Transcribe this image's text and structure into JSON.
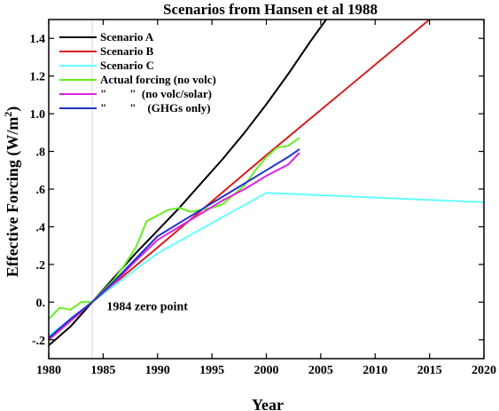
{
  "chart_data": {
    "type": "line",
    "title": "Scenarios from Hansen et al 1988",
    "xlabel": "Year",
    "ylabel": "Effective Forcing (W/m",
    "ylabel_sup": "2",
    "ylabel_close": ")",
    "xlim": [
      1980,
      2020
    ],
    "ylim": [
      -0.3,
      1.5
    ],
    "x_ticks": [
      {
        "value": 1980,
        "label": "1980"
      },
      {
        "value": 1985,
        "label": "1985"
      },
      {
        "value": 1990,
        "label": "1990"
      },
      {
        "value": 1995,
        "label": "1995"
      },
      {
        "value": 2000,
        "label": "2000"
      },
      {
        "value": 2005,
        "label": "2005"
      },
      {
        "value": 2010,
        "label": "2010"
      },
      {
        "value": 2015,
        "label": "2015"
      },
      {
        "value": 2020,
        "label": "2020"
      }
    ],
    "y_ticks": [
      {
        "value": -0.2,
        "label": "-.2"
      },
      {
        "value": 0.0,
        "label": "0."
      },
      {
        "value": 0.2,
        "label": ".2"
      },
      {
        "value": 0.4,
        "label": ".4"
      },
      {
        "value": 0.6,
        "label": ".6"
      },
      {
        "value": 0.8,
        "label": ".8"
      },
      {
        "value": 1.0,
        "label": "1.0"
      },
      {
        "value": 1.2,
        "label": "1.2"
      },
      {
        "value": 1.4,
        "label": "1.4"
      }
    ],
    "reference_line": {
      "x": 1984,
      "color": "#d8d8d8"
    },
    "annotations": [
      {
        "text": "1984 zero point",
        "x": 1985,
        "y": -0.02
      }
    ],
    "legend_placement": "top-left",
    "legend_labels": [
      "Scenario A",
      "Scenario B",
      "Scenario C",
      "Actual forcing (no volc)",
      "\"        \"  (no volc/solar)",
      "\"        \"    (GHGs only)"
    ],
    "series": [
      {
        "name": "Scenario A",
        "color": "#000000",
        "x": [
          1980,
          1982,
          1984,
          1986,
          1988,
          1990,
          1992,
          1994,
          1996,
          1998,
          2000,
          2002,
          2004,
          2005.5
        ],
        "y": [
          -0.23,
          -0.13,
          0.0,
          0.13,
          0.26,
          0.38,
          0.5,
          0.63,
          0.76,
          0.9,
          1.05,
          1.21,
          1.38,
          1.5
        ]
      },
      {
        "name": "Scenario B",
        "color": "#d42020",
        "x": [
          1980,
          1984,
          1990,
          2000,
          2010,
          2015
        ],
        "y": [
          -0.2,
          0.0,
          0.29,
          0.78,
          1.26,
          1.5
        ]
      },
      {
        "name": "Scenario C",
        "color": "#66ffff",
        "x": [
          1980,
          1984,
          1990,
          2000,
          2010,
          2020
        ],
        "y": [
          -0.18,
          0.0,
          0.26,
          0.58,
          0.555,
          0.53
        ]
      },
      {
        "name": "Actual forcing (no volc)",
        "color": "#66ee22",
        "x": [
          1980,
          1981,
          1982,
          1983,
          1984,
          1985,
          1986,
          1987,
          1988,
          1989,
          1990,
          1991,
          1992,
          1993,
          1994,
          1995,
          1996,
          1997,
          1998,
          1999,
          2000,
          2001,
          2002,
          2003
        ],
        "y": [
          -0.09,
          -0.03,
          -0.04,
          0.0,
          0.0,
          0.06,
          0.12,
          0.2,
          0.29,
          0.43,
          0.46,
          0.49,
          0.5,
          0.48,
          0.49,
          0.5,
          0.52,
          0.57,
          0.62,
          0.7,
          0.77,
          0.82,
          0.83,
          0.87
        ]
      },
      {
        "name": "no volc/solar",
        "color": "#dd22dd",
        "x": [
          1980,
          1982,
          1984,
          1986,
          1988,
          1990,
          1992,
          1994,
          1996,
          1998,
          2000,
          2002,
          2003
        ],
        "y": [
          -0.2,
          -0.1,
          0.0,
          0.1,
          0.22,
          0.33,
          0.4,
          0.47,
          0.54,
          0.6,
          0.67,
          0.73,
          0.79
        ]
      },
      {
        "name": "GHGs only",
        "color": "#2233cc",
        "x": [
          1980,
          1982,
          1984,
          1986,
          1988,
          1990,
          1992,
          1994,
          1996,
          1998,
          2000,
          2002,
          2003
        ],
        "y": [
          -0.19,
          -0.09,
          0.0,
          0.11,
          0.23,
          0.35,
          0.42,
          0.49,
          0.56,
          0.63,
          0.7,
          0.77,
          0.81
        ]
      }
    ]
  }
}
